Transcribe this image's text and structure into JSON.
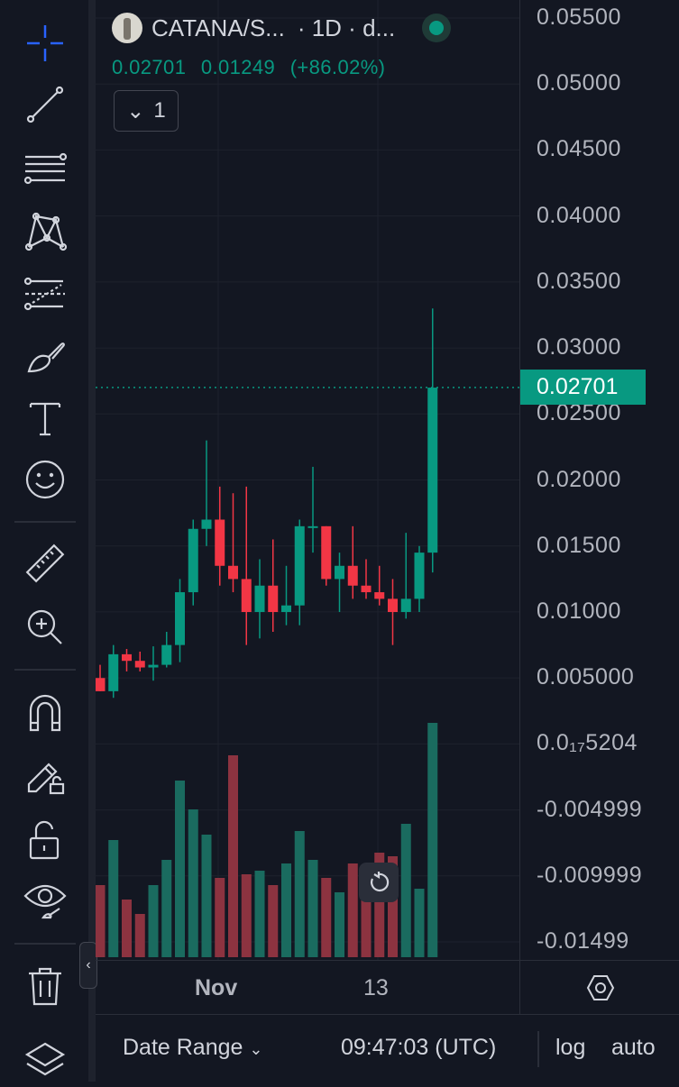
{
  "legend": {
    "symbol": "CATANA/S...",
    "interval": "· 1D · d...",
    "last": "0.02701",
    "change": "0.01249",
    "change_pct": "(+86.02%)",
    "collapse_count": "1"
  },
  "price_scale": {
    "ticks": [
      "0.05500",
      "0.05000",
      "0.04500",
      "0.04000",
      "0.03500",
      "0.03000",
      "0.02500",
      "0.02000",
      "0.01500",
      "0.01000",
      "0.005000",
      "0.0₁₇5204",
      "-0.004999",
      "-0.009999",
      "-0.01499"
    ],
    "last_price_label": "0.02701"
  },
  "time_scale": {
    "labels": [
      "Nov",
      "13"
    ]
  },
  "bottom_bar": {
    "date_range": "Date Range",
    "time": "09:47:03 (UTC)",
    "log": "log",
    "auto": "auto"
  },
  "colors": {
    "up": "#089981",
    "down": "#f23645",
    "up_volume": "#1a6b5f",
    "down_volume": "#8c3340",
    "background": "#131722",
    "grid": "#1e222d"
  },
  "chart_data": {
    "type": "candlestick",
    "symbol": "CATANA/S...",
    "interval": "1D",
    "ylim": [
      -0.0149,
      0.0555
    ],
    "candles": [
      {
        "o": 0.005,
        "h": 0.006,
        "l": 0.004,
        "c": 0.004
      },
      {
        "o": 0.004,
        "h": 0.0075,
        "l": 0.0035,
        "c": 0.0068
      },
      {
        "o": 0.0068,
        "h": 0.0072,
        "l": 0.0055,
        "c": 0.0063
      },
      {
        "o": 0.0063,
        "h": 0.007,
        "l": 0.0055,
        "c": 0.0058
      },
      {
        "o": 0.0058,
        "h": 0.0074,
        "l": 0.0048,
        "c": 0.006
      },
      {
        "o": 0.006,
        "h": 0.0085,
        "l": 0.0058,
        "c": 0.0075
      },
      {
        "o": 0.0075,
        "h": 0.0125,
        "l": 0.0062,
        "c": 0.0115
      },
      {
        "o": 0.0115,
        "h": 0.017,
        "l": 0.0105,
        "c": 0.0163
      },
      {
        "o": 0.0163,
        "h": 0.023,
        "l": 0.015,
        "c": 0.017
      },
      {
        "o": 0.017,
        "h": 0.0195,
        "l": 0.012,
        "c": 0.0135
      },
      {
        "o": 0.0135,
        "h": 0.019,
        "l": 0.0115,
        "c": 0.0125
      },
      {
        "o": 0.0125,
        "h": 0.0195,
        "l": 0.0075,
        "c": 0.01
      },
      {
        "o": 0.01,
        "h": 0.014,
        "l": 0.008,
        "c": 0.012
      },
      {
        "o": 0.012,
        "h": 0.0155,
        "l": 0.0085,
        "c": 0.01
      },
      {
        "o": 0.01,
        "h": 0.0135,
        "l": 0.009,
        "c": 0.0105
      },
      {
        "o": 0.0105,
        "h": 0.017,
        "l": 0.009,
        "c": 0.0165
      },
      {
        "o": 0.0165,
        "h": 0.021,
        "l": 0.0145,
        "c": 0.0165
      },
      {
        "o": 0.0165,
        "h": 0.0165,
        "l": 0.012,
        "c": 0.0125
      },
      {
        "o": 0.0125,
        "h": 0.0145,
        "l": 0.01,
        "c": 0.0135
      },
      {
        "o": 0.0135,
        "h": 0.0165,
        "l": 0.011,
        "c": 0.012
      },
      {
        "o": 0.012,
        "h": 0.014,
        "l": 0.011,
        "c": 0.0115
      },
      {
        "o": 0.0115,
        "h": 0.0135,
        "l": 0.0105,
        "c": 0.011
      },
      {
        "o": 0.011,
        "h": 0.0125,
        "l": 0.0075,
        "c": 0.01
      },
      {
        "o": 0.01,
        "h": 0.016,
        "l": 0.0095,
        "c": 0.011
      },
      {
        "o": 0.011,
        "h": 0.015,
        "l": 0.01,
        "c": 0.0145
      },
      {
        "o": 0.0145,
        "h": 0.033,
        "l": 0.013,
        "c": 0.027
      }
    ],
    "volume": [
      0.4,
      0.65,
      0.32,
      0.24,
      0.4,
      0.54,
      0.98,
      0.82,
      0.68,
      0.44,
      1.12,
      0.46,
      0.48,
      0.4,
      0.52,
      0.7,
      0.54,
      0.44,
      0.36,
      0.52,
      0.42,
      0.58,
      0.56,
      0.74,
      0.38,
      1.3
    ],
    "price_axis_ticks": [
      "0.05500",
      "0.05000",
      "0.04500",
      "0.04000",
      "0.03500",
      "0.03000",
      "0.02500",
      "0.02000",
      "0.01500",
      "0.01000",
      "0.005000",
      "0.0₁₇5204",
      "-0.004999",
      "-0.009999",
      "-0.01499"
    ],
    "time_axis_ticks": [
      "Nov",
      "13"
    ],
    "last_price": 0.02701,
    "grid": true
  }
}
